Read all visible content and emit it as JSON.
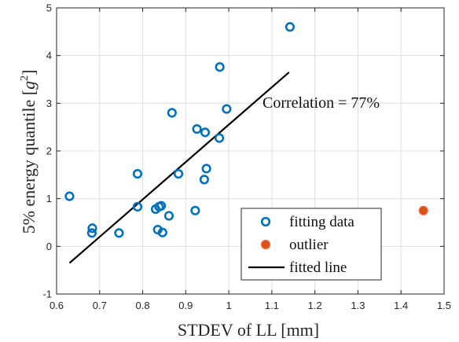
{
  "chart_data": {
    "type": "scatter",
    "xlabel": "STDEV of LL [mm]",
    "ylabel_main": "5% energy quantile [",
    "ylabel_var": "g",
    "ylabel_sup": "2",
    "ylabel_end": "]",
    "xlim": [
      0.6,
      1.5
    ],
    "ylim": [
      -1,
      5
    ],
    "xticks": [
      "0.6",
      "0.7",
      "0.8",
      "0.9",
      "1",
      "1.1",
      "1.2",
      "1.3",
      "1.4",
      "1.5"
    ],
    "yticks": [
      "-1",
      "0",
      "1",
      "2",
      "3",
      "4",
      "5"
    ],
    "grid": true,
    "legend_position": "bottom-right",
    "annotation": "Correlation = 77%",
    "series": [
      {
        "name": "fitting data",
        "marker": "open-circle",
        "color": "#0072BD",
        "points": [
          [
            0.63,
            1.05
          ],
          [
            0.682,
            0.28
          ],
          [
            0.683,
            0.38
          ],
          [
            0.745,
            0.28
          ],
          [
            0.788,
            0.83
          ],
          [
            0.788,
            1.52
          ],
          [
            0.83,
            0.78
          ],
          [
            0.835,
            0.35
          ],
          [
            0.838,
            0.83
          ],
          [
            0.843,
            0.85
          ],
          [
            0.846,
            0.29
          ],
          [
            0.861,
            0.64
          ],
          [
            0.868,
            2.8
          ],
          [
            0.883,
            1.52
          ],
          [
            0.922,
            0.75
          ],
          [
            0.926,
            2.46
          ],
          [
            0.943,
            1.4
          ],
          [
            0.945,
            2.39
          ],
          [
            0.948,
            1.63
          ],
          [
            0.978,
            2.27
          ],
          [
            0.979,
            3.76
          ],
          [
            0.995,
            2.88
          ],
          [
            1.142,
            4.6
          ]
        ]
      },
      {
        "name": "outlier",
        "marker": "filled-circle",
        "color": "#D95319",
        "points": [
          [
            1.452,
            0.75
          ]
        ]
      },
      {
        "name": "fitted line",
        "marker": "line",
        "color": "#000000",
        "points": [
          [
            0.63,
            -0.35
          ],
          [
            1.14,
            3.65
          ]
        ]
      }
    ]
  }
}
